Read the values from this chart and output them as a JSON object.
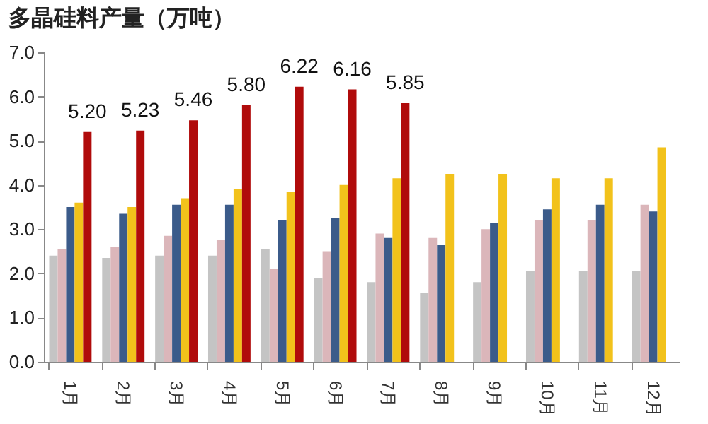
{
  "chart_data": {
    "type": "bar",
    "title": "多晶硅料产量（万吨）",
    "categories": [
      "1月",
      "2月",
      "3月",
      "4月",
      "5月",
      "6月",
      "7月",
      "8月",
      "9月",
      "10月",
      "11月",
      "12月"
    ],
    "series": [
      {
        "color": "#c4c4c4",
        "values": [
          2.4,
          2.35,
          2.4,
          2.4,
          2.55,
          1.9,
          1.8,
          1.55,
          1.8,
          2.05,
          2.05,
          2.05
        ]
      },
      {
        "color": "#dbb6ba",
        "values": [
          2.55,
          2.6,
          2.85,
          2.75,
          2.1,
          2.5,
          2.9,
          2.8,
          3.0,
          3.2,
          3.2,
          3.55
        ]
      },
      {
        "color": "#3b5b8a",
        "values": [
          3.5,
          3.35,
          3.55,
          3.55,
          3.2,
          3.25,
          2.8,
          2.65,
          3.15,
          3.45,
          3.55,
          3.4
        ]
      },
      {
        "color": "#f2c21b",
        "values": [
          3.6,
          3.5,
          3.7,
          3.9,
          3.85,
          4.0,
          4.15,
          4.25,
          4.25,
          4.15,
          4.15,
          4.85
        ]
      },
      {
        "color": "#b00b0b",
        "values": [
          5.2,
          5.23,
          5.46,
          5.8,
          6.22,
          6.16,
          5.85,
          null,
          null,
          null,
          null,
          null
        ],
        "value_labels": [
          "5.20",
          "5.23",
          "5.46",
          "5.80",
          "6.22",
          "6.16",
          "5.85",
          null,
          null,
          null,
          null,
          null
        ]
      }
    ],
    "ylim": [
      0,
      7
    ],
    "yticks": [
      {
        "value": 0,
        "label": "0.0"
      },
      {
        "value": 1,
        "label": "1.0"
      },
      {
        "value": 2,
        "label": "2.0"
      },
      {
        "value": 3,
        "label": "3.0"
      },
      {
        "value": 4,
        "label": "4.0"
      },
      {
        "value": 5,
        "label": "5.0"
      },
      {
        "value": 6,
        "label": "6.0"
      },
      {
        "value": 7,
        "label": "7.0"
      }
    ],
    "grid": false,
    "legend": false
  }
}
